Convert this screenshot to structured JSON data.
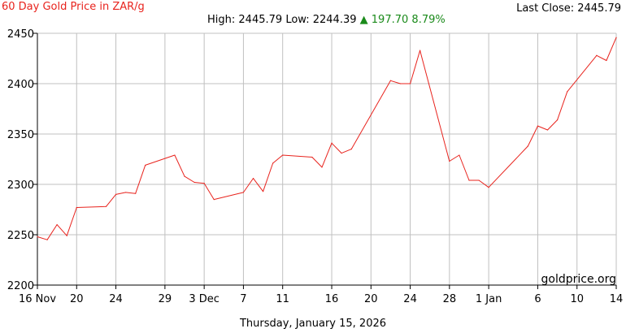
{
  "header": {
    "title": "60 Day Gold Price in ZAR/g",
    "last_close": "Last Close: 2445.79",
    "high_label": "High:",
    "high_value": "2445.79",
    "low_label": "Low:",
    "low_value": "2244.39",
    "up_arrow": "▲",
    "change_value": "197.70",
    "change_pct": "8.79%"
  },
  "footer": {
    "date": "Thursday, January 15, 2026"
  },
  "watermark": "goldprice.org",
  "colors": {
    "line": "#e8231d",
    "up": "#1a8a1a",
    "grid": "#c0c0c0",
    "axis": "#000000"
  },
  "chart_data": {
    "type": "line",
    "title": "60 Day Gold Price in ZAR/g",
    "xlabel": "",
    "ylabel": "",
    "ylim": [
      2200,
      2450
    ],
    "xlim": [
      "2025-11-16",
      "2026-01-14"
    ],
    "yticks": [
      2200,
      2250,
      2300,
      2350,
      2400,
      2450
    ],
    "xticks": [
      {
        "date": "2025-11-16",
        "label": "16 Nov"
      },
      {
        "date": "2025-11-20",
        "label": "20"
      },
      {
        "date": "2025-11-24",
        "label": "24"
      },
      {
        "date": "2025-11-29",
        "label": "29"
      },
      {
        "date": "2025-12-03",
        "label": "3 Dec"
      },
      {
        "date": "2025-12-07",
        "label": "7"
      },
      {
        "date": "2025-12-11",
        "label": "11"
      },
      {
        "date": "2025-12-16",
        "label": "16"
      },
      {
        "date": "2025-12-20",
        "label": "20"
      },
      {
        "date": "2025-12-24",
        "label": "24"
      },
      {
        "date": "2025-12-28",
        "label": "28"
      },
      {
        "date": "2026-01-01",
        "label": "1 Jan"
      },
      {
        "date": "2026-01-06",
        "label": "6"
      },
      {
        "date": "2026-01-10",
        "label": "10"
      },
      {
        "date": "2026-01-14",
        "label": "14"
      }
    ],
    "grid": true,
    "series": [
      {
        "x": [
          "2025-11-16",
          "2025-11-17",
          "2025-11-18",
          "2025-11-19",
          "2025-11-20",
          "2025-11-23",
          "2025-11-24",
          "2025-11-25",
          "2025-11-26",
          "2025-11-27",
          "2025-11-30",
          "2025-12-01",
          "2025-12-02",
          "2025-12-03",
          "2025-12-04",
          "2025-12-07",
          "2025-12-08",
          "2025-12-09",
          "2025-12-10",
          "2025-12-11",
          "2025-12-14",
          "2025-12-15",
          "2025-12-16",
          "2025-12-17",
          "2025-12-18",
          "2025-12-22",
          "2025-12-23",
          "2025-12-24",
          "2025-12-25",
          "2025-12-28",
          "2025-12-29",
          "2025-12-30",
          "2025-12-31",
          "2026-01-01",
          "2026-01-05",
          "2026-01-06",
          "2026-01-07",
          "2026-01-08",
          "2026-01-09",
          "2026-01-12",
          "2026-01-13",
          "2026-01-14"
        ],
        "values": [
          2248,
          2245,
          2260,
          2249,
          2277,
          2278,
          2290,
          2292,
          2291,
          2319,
          2329,
          2308,
          2302,
          2301,
          2285,
          2292,
          2306,
          2293,
          2321,
          2329,
          2327,
          2317,
          2341,
          2331,
          2335,
          2403,
          2400,
          2400,
          2433,
          2323,
          2329,
          2304,
          2304,
          2297,
          2338,
          2358,
          2354,
          2364,
          2392,
          2428,
          2423,
          2445.79
        ]
      }
    ]
  }
}
